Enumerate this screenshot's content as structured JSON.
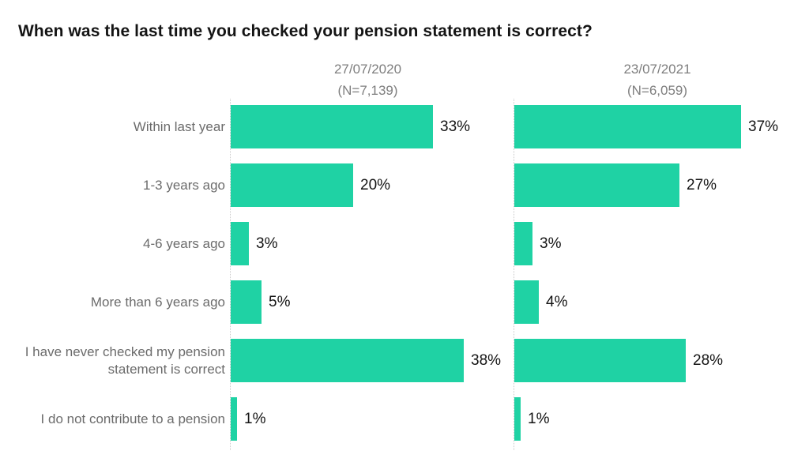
{
  "title": "When was the last time you checked your pension statement is correct?",
  "chart_data": {
    "type": "bar",
    "orientation": "horizontal",
    "title": "When was the last time you checked your pension statement is correct?",
    "categories": [
      "Within last year",
      "1-3 years ago",
      "4-6 years ago",
      "More than 6 years ago",
      "I have never checked my pension statement is correct",
      "I do not contribute to a pension"
    ],
    "series": [
      {
        "name": "27/07/2020",
        "n_label": "(N=7,139)",
        "values": [
          33,
          20,
          3,
          5,
          38,
          1
        ]
      },
      {
        "name": "23/07/2021",
        "n_label": "(N=6,059)",
        "values": [
          37,
          27,
          3,
          4,
          28,
          1
        ]
      }
    ],
    "value_suffix": "%",
    "xlim": [
      0,
      40
    ],
    "grid": "dotted-axis-line-only",
    "legend_position": "column-headers-top",
    "colors": {
      "bar": "#1fd2a4",
      "category_label": "#6b6b6b",
      "value_label": "#141414",
      "header": "#7e7e7e",
      "axis_line": "#c9c9c9",
      "title": "#141414",
      "background": "#ffffff"
    }
  }
}
